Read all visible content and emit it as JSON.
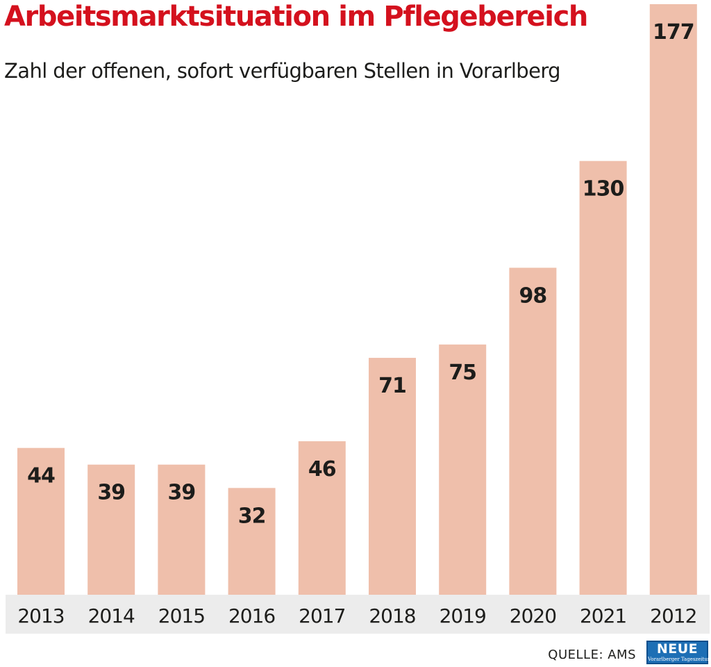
{
  "header": {
    "title": "Arbeitsmarktsituation im Pflegebereich",
    "subtitle": "Zahl der offenen, sofort verfügbaren Stellen in Vorarlberg"
  },
  "footer": {
    "source": "QUELLE: AMS",
    "logo_name": "NEUE",
    "logo_tagline": "Vorarlberger Tageszeitung"
  },
  "colors": {
    "bar": "#efbfab",
    "label": "#1d1d1b",
    "axis_band": "#ececec",
    "title": "#d4111e"
  },
  "chart_data": {
    "type": "bar",
    "categories": [
      "2013",
      "2014",
      "2015",
      "2016",
      "2017",
      "2018",
      "2019",
      "2020",
      "2021",
      "2012"
    ],
    "values": [
      44,
      39,
      39,
      32,
      46,
      71,
      75,
      98,
      130,
      177
    ],
    "title": "Arbeitsmarktsituation im Pflegebereich",
    "subtitle": "Zahl der offenen, sofort verfügbaren Stellen in Vorarlberg",
    "xlabel": "",
    "ylabel": "",
    "ylim": [
      0,
      177
    ],
    "grid": false,
    "legend": "none",
    "data_labels": "inside-top"
  }
}
